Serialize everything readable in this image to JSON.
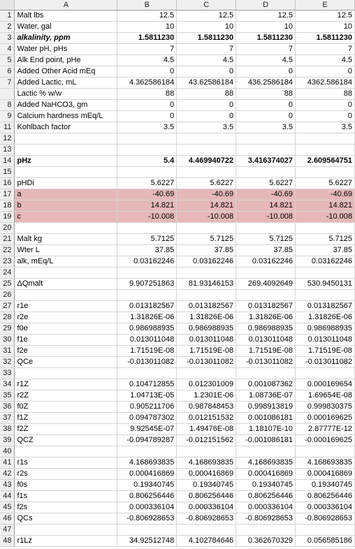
{
  "columns": [
    "A",
    "B",
    "C",
    "D",
    "E"
  ],
  "rows": [
    {
      "n": "1",
      "label": "Malt lbs",
      "b": "12.5",
      "c": "12.5",
      "d": "12.5",
      "e": "12.5"
    },
    {
      "n": "2",
      "label": "Water, gal",
      "b": "10",
      "c": "10",
      "d": "10",
      "e": "10"
    },
    {
      "n": "3",
      "label": "alkalinity, ppm",
      "b": "1.5811230",
      "c": "1.5811230",
      "d": "1.5811230",
      "e": "1.5811230",
      "style": "bold italic"
    },
    {
      "n": "4",
      "label": "Water pH, pHs",
      "b": "7",
      "c": "7",
      "d": "7",
      "e": "7"
    },
    {
      "n": "5",
      "label": "Alk End point, pHe",
      "b": "4.5",
      "c": "4.5",
      "d": "4.5",
      "e": "4.5"
    },
    {
      "n": "6",
      "label": "Added Other Acid mEq",
      "b": "0",
      "c": "0",
      "d": "0",
      "e": "0"
    },
    {
      "n": "7",
      "label": "Added Lactic, mL",
      "b": "4.362586184",
      "c": "43.62586184",
      "d": "436.2586184",
      "e": "4362.586184"
    },
    {
      "n": "",
      "label": "Lactic % w/w",
      "b": "88",
      "c": "88",
      "d": "88",
      "e": "88"
    },
    {
      "n": "8",
      "label": "Added NaHCO3, gm",
      "b": "0",
      "c": "0",
      "d": "0",
      "e": "0"
    },
    {
      "n": "9",
      "label": "Calcium hardness mEq/L",
      "b": "0",
      "c": "0",
      "d": "0",
      "e": "0"
    },
    {
      "n": "11",
      "label": "Kohlbach factor",
      "b": "3.5",
      "c": "3.5",
      "d": "3.5",
      "e": "3.5"
    },
    {
      "n": "12",
      "label": "",
      "b": "",
      "c": "",
      "d": "",
      "e": ""
    },
    {
      "n": "13",
      "label": "",
      "b": "",
      "c": "",
      "d": "",
      "e": ""
    },
    {
      "n": "14",
      "label": "pHz",
      "b": "5.4",
      "c": "4.469940722",
      "d": "3.416374027",
      "e": "2.609564751",
      "style": "bold"
    },
    {
      "n": "15",
      "label": "",
      "b": "",
      "c": "",
      "d": "",
      "e": ""
    },
    {
      "n": "16",
      "label": "pHDi",
      "b": "5.6227",
      "c": "5.6227",
      "d": "5.6227",
      "e": "5.6227"
    },
    {
      "n": "17",
      "label": "a",
      "b": "-40.69",
      "c": "-40.69",
      "d": "-40.69",
      "e": "-40.69",
      "style": "hl"
    },
    {
      "n": "18",
      "label": "b",
      "b": "14.821",
      "c": "14.821",
      "d": "14.821",
      "e": "14.821",
      "style": "hl"
    },
    {
      "n": "19",
      "label": "c",
      "b": "-10.008",
      "c": "-10.008",
      "d": "-10.008",
      "e": "-10.008",
      "style": "hl"
    },
    {
      "n": "20",
      "label": "",
      "b": "",
      "c": "",
      "d": "",
      "e": ""
    },
    {
      "n": "21",
      "label": "Malt kg",
      "b": "5.7125",
      "c": "5.7125",
      "d": "5.7125",
      "e": "5.7125"
    },
    {
      "n": "22",
      "label": "Wter L",
      "b": "37.85",
      "c": "37.85",
      "d": "37.85",
      "e": "37.85"
    },
    {
      "n": "23",
      "label": "alk, mEq/L",
      "b": "0.03162246",
      "c": "0.03162246",
      "d": "0.03162246",
      "e": "0.03162246"
    },
    {
      "n": "24",
      "label": "",
      "b": "",
      "c": "",
      "d": "",
      "e": ""
    },
    {
      "n": "25",
      "label": "ΔQmalt",
      "b": "9.907251863",
      "c": "81.93146153",
      "d": "269.4092649",
      "e": "530.9450131"
    },
    {
      "n": "26",
      "label": "",
      "b": "",
      "c": "",
      "d": "",
      "e": ""
    },
    {
      "n": "27",
      "label": "r1e",
      "b": "0.013182567",
      "c": "0.013182567",
      "d": "0.013182567",
      "e": "0.013182567"
    },
    {
      "n": "28",
      "label": "r2e",
      "b": "1.31826E-06",
      "c": "1.31826E-06",
      "d": "1.31826E-06",
      "e": "1.31826E-06"
    },
    {
      "n": "29",
      "label": "f0e",
      "b": "0.986988935",
      "c": "0.986988935",
      "d": "0.986988935",
      "e": "0.986988935"
    },
    {
      "n": "30",
      "label": "f1e",
      "b": "0.013011048",
      "c": "0.013011048",
      "d": "0.013011048",
      "e": "0.013011048"
    },
    {
      "n": "31",
      "label": "f2e",
      "b": "1.71519E-08",
      "c": "1.71519E-08",
      "d": "1.71519E-08",
      "e": "1.71519E-08"
    },
    {
      "n": "32",
      "label": "QCe",
      "b": "-0.013011082",
      "c": "-0.013011082",
      "d": "-0.013011082",
      "e": "-0.013011082"
    },
    {
      "n": "33",
      "label": "",
      "b": "",
      "c": "",
      "d": "",
      "e": ""
    },
    {
      "n": "34",
      "label": "r1Z",
      "b": "0.104712855",
      "c": "0.012301009",
      "d": "0.001087362",
      "e": "0.000169654"
    },
    {
      "n": "35",
      "label": "r2Z",
      "b": "1.04713E-05",
      "c": "1.2301E-06",
      "d": "1.08736E-07",
      "e": "1.69654E-08"
    },
    {
      "n": "36",
      "label": "f0Z",
      "b": "0.905211706",
      "c": "0.987848453",
      "d": "0.998913819",
      "e": "0.999830375"
    },
    {
      "n": "37",
      "label": "f1Z",
      "b": "0.094787302",
      "c": "0.012151532",
      "d": "0.001086181",
      "e": "0.000169625"
    },
    {
      "n": "38",
      "label": "f2Z",
      "b": "9.92545E-07",
      "c": "1.49476E-08",
      "d": "1.18107E-10",
      "e": "2.87777E-12"
    },
    {
      "n": "39",
      "label": "QCZ",
      "b": "-0.094789287",
      "c": "-0.012151562",
      "d": "-0.001086181",
      "e": "-0.000169625"
    },
    {
      "n": "40",
      "label": "",
      "b": "",
      "c": "",
      "d": "",
      "e": ""
    },
    {
      "n": "41",
      "label": "r1s",
      "b": "4.168693835",
      "c": "4.168693835",
      "d": "4.168693835",
      "e": "4.168693835"
    },
    {
      "n": "42",
      "label": "r2s",
      "b": "0.000416869",
      "c": "0.000416869",
      "d": "0.000416869",
      "e": "0.000416869"
    },
    {
      "n": "43",
      "label": "f0s",
      "b": "0.19340745",
      "c": "0.19340745",
      "d": "0.19340745",
      "e": "0.19340745"
    },
    {
      "n": "44",
      "label": "f1s",
      "b": "0.806256446",
      "c": "0.806256446",
      "d": "0.806256446",
      "e": "0.806256446"
    },
    {
      "n": "45",
      "label": "f2s",
      "b": "0.000336104",
      "c": "0.000336104",
      "d": "0.000336104",
      "e": "0.000336104"
    },
    {
      "n": "46",
      "label": "QCs",
      "b": "-0.806928653",
      "c": "-0.806928653",
      "d": "-0.806928653",
      "e": "-0.806928653"
    },
    {
      "n": "47",
      "label": "",
      "b": "",
      "c": "",
      "d": "",
      "e": ""
    },
    {
      "n": "48",
      "label": "r1Lz",
      "b": "34.92512748",
      "c": "4.102784646",
      "d": "0.362670329",
      "e": "0.056585186"
    }
  ]
}
